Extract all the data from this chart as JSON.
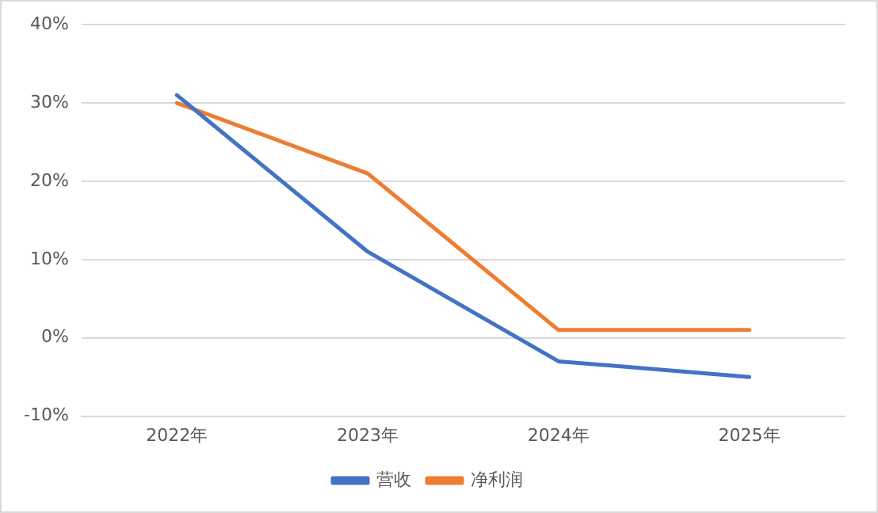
{
  "chart_data": {
    "type": "line",
    "categories": [
      "2022年",
      "2023年",
      "2024年",
      "2025年"
    ],
    "series": [
      {
        "name": "营收",
        "color": "#4472c4",
        "values": [
          31,
          11,
          -3,
          -5
        ]
      },
      {
        "name": "净利润",
        "color": "#ed7d31",
        "values": [
          30,
          21,
          1,
          1
        ]
      }
    ],
    "ylim": [
      -10,
      40
    ],
    "yticks": [
      {
        "value": -10,
        "label": "-10%"
      },
      {
        "value": 0,
        "label": "0%"
      },
      {
        "value": 10,
        "label": "10%"
      },
      {
        "value": 20,
        "label": "20%"
      },
      {
        "value": 30,
        "label": "30%"
      },
      {
        "value": 40,
        "label": "40%"
      }
    ],
    "grid": "y",
    "legend": "bottom",
    "marker": "none",
    "line_style": "solid"
  }
}
